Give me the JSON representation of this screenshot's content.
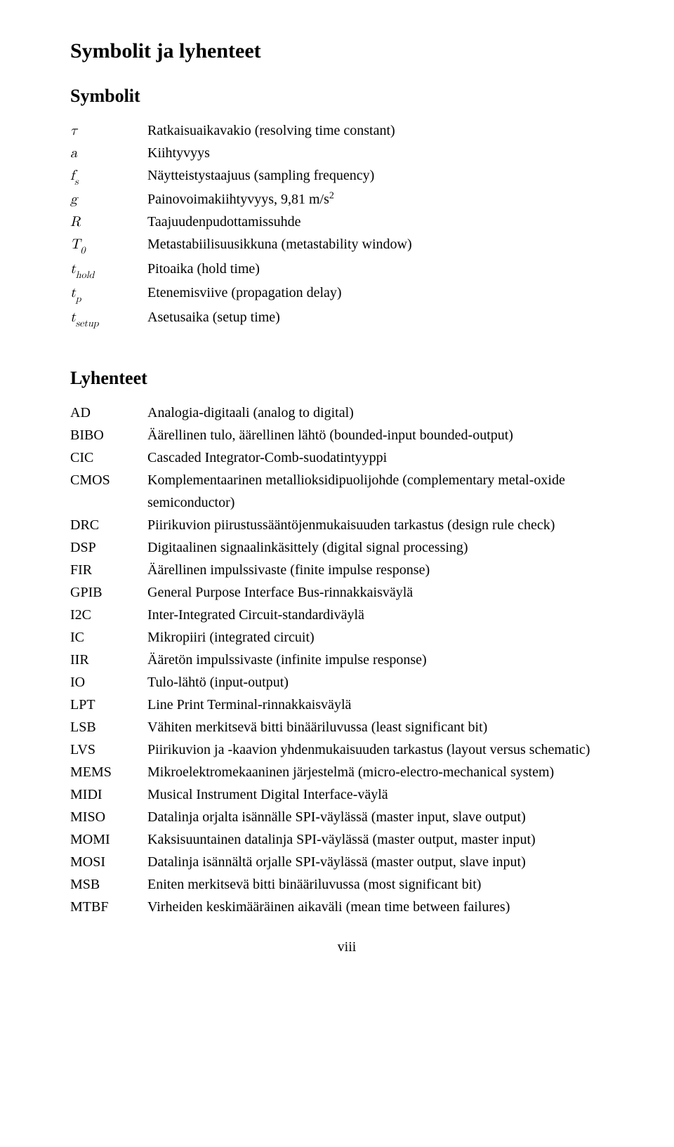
{
  "title": "Symbolit ja lyhenteet",
  "section_symbolit": "Symbolit",
  "section_lyhenteet": "Lyhenteet",
  "page_number": "viii",
  "symbols": [
    {
      "sym_html": "<span>τ</span>",
      "desc": "Ratkaisuaikavakio (resolving time constant)"
    },
    {
      "sym_html": "<span>a</span>",
      "desc": "Kiihtyvyys"
    },
    {
      "sym_html": "<span>f<span class='sub'>s</span></span>",
      "desc": "Näytteistystaajuus (sampling frequency)"
    },
    {
      "sym_html": "<span>g</span>",
      "desc": "Painovoimakiihtyvyys, 9,81 m/s<span class='sq'>2</span>"
    },
    {
      "sym_html": "<span>R</span>",
      "desc": "Taajuudenpudottamissuhde"
    },
    {
      "sym_html": "<span>T<span class='sub'>0</span></span>",
      "desc": "Metastabiilisuusikkuna (metastability window)"
    },
    {
      "sym_html": "<span>t<span class='sub'>hold</span></span>",
      "desc": "Pitoaika (hold time)"
    },
    {
      "sym_html": "<span>t<span class='sub'>p</span></span>",
      "desc": "Etenemisviive (propagation delay)"
    },
    {
      "sym_html": "<span>t<span class='sub'>setup</span></span>",
      "desc": "Asetusaika (setup time)"
    }
  ],
  "abbreviations": [
    {
      "abbr": "AD",
      "desc": "Analogia-digitaali (analog to digital)"
    },
    {
      "abbr": "BIBO",
      "desc": "Äärellinen tulo, äärellinen lähtö (bounded-input bounded-output)"
    },
    {
      "abbr": "CIC",
      "desc": "Cascaded Integrator-Comb-suodatintyyppi"
    },
    {
      "abbr": "CMOS",
      "desc": "Komplementaarinen metallioksidipuolijohde (complementary metal-oxide semiconductor)"
    },
    {
      "abbr": "DRC",
      "desc": "Piirikuvion piirustussääntöjenmukaisuuden tarkastus (design rule check)"
    },
    {
      "abbr": "DSP",
      "desc": "Digitaalinen signaalinkäsittely (digital signal processing)"
    },
    {
      "abbr": "FIR",
      "desc": "Äärellinen impulssivaste (finite impulse response)"
    },
    {
      "abbr": "GPIB",
      "desc": "General Purpose Interface Bus-rinnakkaisväylä"
    },
    {
      "abbr": "I2C",
      "desc": "Inter-Integrated Circuit-standardiväylä"
    },
    {
      "abbr": "IC",
      "desc": "Mikropiiri (integrated circuit)"
    },
    {
      "abbr": "IIR",
      "desc": "Ääretön impulssivaste (infinite impulse response)"
    },
    {
      "abbr": "IO",
      "desc": "Tulo-lähtö (input-output)"
    },
    {
      "abbr": "LPT",
      "desc": "Line Print Terminal-rinnakkaisväylä"
    },
    {
      "abbr": "LSB",
      "desc": "Vähiten merkitsevä bitti binääriluvussa (least significant bit)"
    },
    {
      "abbr": "LVS",
      "desc": "Piirikuvion ja -kaavion yhdenmukaisuuden tarkastus (layout versus schematic)"
    },
    {
      "abbr": "MEMS",
      "desc": "Mikroelektromekaaninen järjestelmä (micro-electro-mechanical system)"
    },
    {
      "abbr": "MIDI",
      "desc": "Musical Instrument Digital Interface-väylä"
    },
    {
      "abbr": "MISO",
      "desc": "Datalinja orjalta isännälle SPI-väylässä (master input, slave output)"
    },
    {
      "abbr": "MOMI",
      "desc": "Kaksisuuntainen datalinja SPI-väylässä (master output, master input)"
    },
    {
      "abbr": "MOSI",
      "desc": "Datalinja isännältä orjalle SPI-väylässä (master output, slave input)"
    },
    {
      "abbr": "MSB",
      "desc": "Eniten merkitsevä bitti binääriluvussa (most significant bit)"
    },
    {
      "abbr": "MTBF",
      "desc": "Virheiden keskimääräinen aikaväli (mean time between failures)"
    }
  ]
}
